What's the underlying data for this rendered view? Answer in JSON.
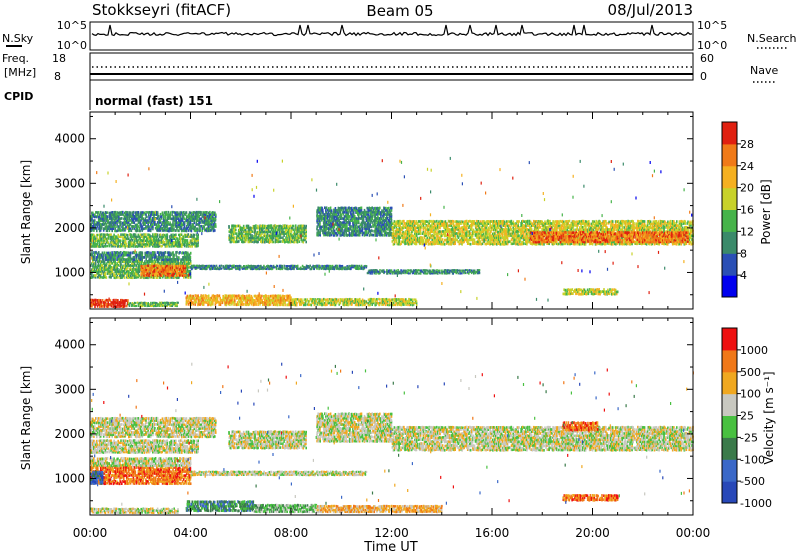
{
  "header": {
    "station": "Stokkseyri (fitACF)",
    "beam": "Beam 05",
    "date": "08/Jul/2013"
  },
  "top_panels": {
    "nsky_label": "N.Sky",
    "nsky_ticks": [
      "10^5",
      "10^0"
    ],
    "nsearch_label": "N.Search",
    "nsearch_ticks": [
      "10^5",
      "10^0"
    ],
    "freq_label_1": "Freq.",
    "freq_label_2": "[MHz]",
    "freq_ticks": [
      "18",
      "8"
    ],
    "nave_label": "Nave",
    "nave_ticks": [
      "60",
      "0"
    ],
    "cpid_label": "CPID",
    "cpid_value": "normal (fast) 151"
  },
  "chart_data": [
    {
      "type": "heatmap",
      "name": "power",
      "ylabel": "Slant Range [km]",
      "yticks": [
        "1000",
        "2000",
        "3000",
        "4000"
      ],
      "yticks_values": [
        1000,
        2000,
        3000,
        4000
      ],
      "ylim": [
        180,
        4600
      ],
      "xlim": [
        0,
        24
      ],
      "colorbar": {
        "label": "Power [dB]",
        "ticks": [
          "4",
          "8",
          "12",
          "16",
          "20",
          "24",
          "28"
        ],
        "colors": [
          "#0000ee",
          "#2a4fb5",
          "#3a8a6a",
          "#46b34a",
          "#c8d22a",
          "#f5b020",
          "#f07a18",
          "#e02010"
        ]
      },
      "bands": [
        {
          "t0": 0.0,
          "t1": 5.0,
          "r0": 1900,
          "r1": 2350,
          "level": 2
        },
        {
          "t0": 0.0,
          "t1": 4.3,
          "r0": 1550,
          "r1": 1850,
          "level": 3
        },
        {
          "t0": 5.5,
          "t1": 8.6,
          "r0": 1650,
          "r1": 2050,
          "level": 3
        },
        {
          "t0": 9.0,
          "t1": 12.0,
          "r0": 1800,
          "r1": 2450,
          "level": 2
        },
        {
          "t0": 12.0,
          "t1": 24.0,
          "r0": 1600,
          "r1": 2150,
          "level": 4
        },
        {
          "t0": 17.5,
          "t1": 23.8,
          "r0": 1650,
          "r1": 1900,
          "level": 6
        },
        {
          "t0": 0.0,
          "t1": 4.0,
          "r0": 850,
          "r1": 1250,
          "level": 3
        },
        {
          "t0": 2.0,
          "t1": 3.8,
          "r0": 900,
          "r1": 1150,
          "level": 6
        },
        {
          "t0": 0.0,
          "t1": 4.0,
          "r0": 1250,
          "r1": 1450,
          "level": 2
        },
        {
          "t0": 4.0,
          "t1": 11.0,
          "r0": 1050,
          "r1": 1150,
          "level": 2
        },
        {
          "t0": 11.0,
          "t1": 15.5,
          "r0": 950,
          "r1": 1050,
          "level": 2
        },
        {
          "t0": 18.8,
          "t1": 21.0,
          "r0": 480,
          "r1": 620,
          "level": 4
        },
        {
          "t0": 3.8,
          "t1": 8.0,
          "r0": 240,
          "r1": 480,
          "level": 5
        },
        {
          "t0": 8.0,
          "t1": 13.0,
          "r0": 240,
          "r1": 400,
          "level": 4
        },
        {
          "t0": 0.0,
          "t1": 1.5,
          "r0": 200,
          "r1": 380,
          "level": 7
        },
        {
          "t0": 1.5,
          "t1": 3.5,
          "r0": 220,
          "r1": 320,
          "level": 3
        }
      ]
    },
    {
      "type": "heatmap",
      "name": "velocity",
      "ylabel": "Slant Range [km]",
      "yticks": [
        "1000",
        "2000",
        "3000",
        "4000"
      ],
      "yticks_values": [
        1000,
        2000,
        3000,
        4000
      ],
      "ylim": [
        180,
        4600
      ],
      "xlim": [
        0,
        24
      ],
      "xticks": [
        "00:00",
        "04:00",
        "08:00",
        "12:00",
        "16:00",
        "20:00",
        "00:00"
      ],
      "xlabel": "Time UT",
      "colorbar": {
        "label": "Velocity [m s⁻¹]",
        "ticks": [
          "1000",
          "500",
          "100",
          "25",
          "-25",
          "-100",
          "-500",
          "-1000"
        ],
        "colors": [
          "#2848b8",
          "#3a68c8",
          "#3a7a4a",
          "#48c040",
          "#c8c8c0",
          "#f0a820",
          "#f07818",
          "#ee1010"
        ]
      },
      "bands": [
        {
          "t0": 0.0,
          "t1": 5.0,
          "r0": 1900,
          "r1": 2350,
          "level": 4
        },
        {
          "t0": 0.0,
          "t1": 4.3,
          "r0": 1550,
          "r1": 1850,
          "level": 4
        },
        {
          "t0": 5.5,
          "t1": 8.6,
          "r0": 1650,
          "r1": 2050,
          "level": 4
        },
        {
          "t0": 9.0,
          "t1": 12.0,
          "r0": 1800,
          "r1": 2450,
          "level": 4
        },
        {
          "t0": 12.0,
          "t1": 24.0,
          "r0": 1600,
          "r1": 2150,
          "level": 4
        },
        {
          "t0": 18.8,
          "t1": 20.2,
          "r0": 2050,
          "r1": 2250,
          "level": 6
        },
        {
          "t0": 0.0,
          "t1": 4.0,
          "r0": 850,
          "r1": 1250,
          "level": 6
        },
        {
          "t0": 0.0,
          "t1": 0.5,
          "r0": 850,
          "r1": 1150,
          "level": 1
        },
        {
          "t0": 0.0,
          "t1": 4.0,
          "r0": 1250,
          "r1": 1450,
          "level": 4
        },
        {
          "t0": 4.0,
          "t1": 11.0,
          "r0": 1050,
          "r1": 1150,
          "level": 4
        },
        {
          "t0": 18.8,
          "t1": 21.0,
          "r0": 480,
          "r1": 620,
          "level": 6
        },
        {
          "t0": 3.8,
          "t1": 6.5,
          "r0": 240,
          "r1": 480,
          "level": 2
        },
        {
          "t0": 6.5,
          "t1": 9.0,
          "r0": 220,
          "r1": 400,
          "level": 3
        },
        {
          "t0": 9.0,
          "t1": 14.0,
          "r0": 220,
          "r1": 380,
          "level": 5
        },
        {
          "t0": 0.0,
          "t1": 3.5,
          "r0": 200,
          "r1": 320,
          "level": 4
        }
      ]
    }
  ]
}
